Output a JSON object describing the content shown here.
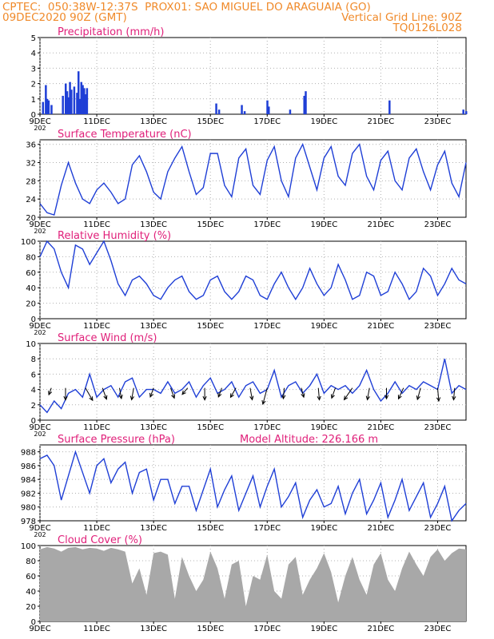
{
  "header": {
    "line1_left": "CPTEC:  050:38W-12:37S  PROX01: SAO MIGUEL DO ARAGUAIA (GO)",
    "line2_left": "09DEC2020 90Z (GMT)",
    "line2_right": "Vertical Grid Line: 90Z",
    "line3_right": "TQ0126L028"
  },
  "colors": {
    "header": "#f08a2a",
    "title": "#e0207a",
    "series": "#1f3fd6",
    "arrow": "#000000",
    "cloud": "#a8a8a8",
    "grid": "#b0b0b0"
  },
  "x_tick_labels": [
    "9DEC",
    "11DEC",
    "13DEC",
    "15DEC",
    "17DEC",
    "19DEC",
    "21DEC",
    "23DEC"
  ],
  "x_tick_days": [
    9,
    11,
    13,
    15,
    17,
    19,
    21,
    23
  ],
  "x_sublabel": "202",
  "x_range_days": [
    9,
    24
  ],
  "chart_data": [
    {
      "type": "bar",
      "title": "Precipitation (mm/h)",
      "ylim": [
        0,
        5
      ],
      "yticks": [
        "0",
        "1",
        "2",
        "3",
        "4",
        "5"
      ],
      "x": [
        9.1,
        9.2,
        9.25,
        9.3,
        9.4,
        9.8,
        9.9,
        9.95,
        10.0,
        10.05,
        10.1,
        10.2,
        10.3,
        10.35,
        10.4,
        10.45,
        10.5,
        10.55,
        10.6,
        10.65,
        15.2,
        15.3,
        16.1,
        16.2,
        17.0,
        17.05,
        17.8,
        18.3,
        18.35,
        21.3,
        23.9,
        24.0
      ],
      "values": [
        0.8,
        1.9,
        1.0,
        0.9,
        0.6,
        1.2,
        2.0,
        1.5,
        1.1,
        2.1,
        1.6,
        1.8,
        1.4,
        2.8,
        1.0,
        2.1,
        1.9,
        1.7,
        1.3,
        1.7,
        0.7,
        0.3,
        0.6,
        0.2,
        0.9,
        0.5,
        0.3,
        1.2,
        1.5,
        0.9,
        0.3,
        0.2
      ],
      "grid": true
    },
    {
      "type": "line",
      "title": "Surface Temperature (nC)",
      "ylim": [
        20,
        37
      ],
      "yticks": [
        "20",
        "24",
        "28",
        "32",
        "36"
      ],
      "x": [
        9.0,
        9.25,
        9.5,
        9.75,
        10.0,
        10.25,
        10.5,
        10.75,
        11.0,
        11.25,
        11.5,
        11.75,
        12.0,
        12.25,
        12.5,
        12.75,
        13.0,
        13.25,
        13.5,
        13.75,
        14.0,
        14.25,
        14.5,
        14.75,
        15.0,
        15.25,
        15.5,
        15.75,
        16.0,
        16.25,
        16.5,
        16.75,
        17.0,
        17.25,
        17.5,
        17.75,
        18.0,
        18.25,
        18.5,
        18.75,
        19.0,
        19.25,
        19.5,
        19.75,
        20.0,
        20.25,
        20.5,
        20.75,
        21.0,
        21.25,
        21.5,
        21.75,
        22.0,
        22.25,
        22.5,
        22.75,
        23.0,
        23.25,
        23.5,
        23.75,
        24.0
      ],
      "values": [
        23.0,
        21.0,
        20.5,
        27.0,
        32.0,
        27.5,
        24.0,
        23.0,
        26.0,
        27.5,
        25.5,
        23.0,
        24.0,
        31.5,
        33.5,
        30.0,
        25.5,
        24.0,
        30.0,
        33.0,
        35.5,
        30.0,
        25.0,
        26.5,
        34.0,
        34.0,
        27.0,
        24.5,
        33.0,
        35.0,
        27.0,
        25.0,
        32.5,
        35.5,
        28.0,
        24.5,
        33.0,
        36.0,
        31.0,
        26.0,
        33.0,
        35.5,
        29.0,
        27.0,
        34.0,
        36.0,
        29.0,
        26.0,
        32.5,
        34.5,
        28.0,
        26.0,
        33.0,
        35.0,
        30.0,
        26.0,
        31.5,
        34.5,
        27.5,
        24.5,
        32.0
      ],
      "grid": true
    },
    {
      "type": "line",
      "title": "Relative Humidity (%)",
      "ylim": [
        0,
        100
      ],
      "yticks": [
        "0",
        "20",
        "40",
        "60",
        "80",
        "100"
      ],
      "x": [
        9.0,
        9.25,
        9.5,
        9.75,
        10.0,
        10.25,
        10.5,
        10.75,
        11.0,
        11.25,
        11.5,
        11.75,
        12.0,
        12.25,
        12.5,
        12.75,
        13.0,
        13.25,
        13.5,
        13.75,
        14.0,
        14.25,
        14.5,
        14.75,
        15.0,
        15.25,
        15.5,
        15.75,
        16.0,
        16.25,
        16.5,
        16.75,
        17.0,
        17.25,
        17.5,
        17.75,
        18.0,
        18.25,
        18.5,
        18.75,
        19.0,
        19.25,
        19.5,
        19.75,
        20.0,
        20.25,
        20.5,
        20.75,
        21.0,
        21.25,
        21.5,
        21.75,
        22.0,
        22.25,
        22.5,
        22.75,
        23.0,
        23.25,
        23.5,
        23.75,
        24.0
      ],
      "values": [
        80,
        100,
        90,
        60,
        40,
        95,
        90,
        70,
        85,
        100,
        75,
        45,
        30,
        50,
        55,
        45,
        30,
        25,
        40,
        50,
        55,
        35,
        25,
        30,
        50,
        55,
        35,
        25,
        35,
        55,
        50,
        30,
        25,
        45,
        60,
        40,
        25,
        40,
        65,
        45,
        30,
        40,
        70,
        50,
        25,
        30,
        60,
        55,
        30,
        35,
        60,
        45,
        25,
        35,
        65,
        55,
        30,
        45,
        65,
        50,
        45
      ],
      "grid": true
    },
    {
      "type": "line",
      "title": "Surface Wind (m/s)",
      "ylim": [
        0,
        10
      ],
      "yticks": [
        "0",
        "2",
        "4",
        "6",
        "8",
        "10"
      ],
      "x": [
        9.0,
        9.25,
        9.5,
        9.75,
        10.0,
        10.25,
        10.5,
        10.75,
        11.0,
        11.25,
        11.5,
        11.75,
        12.0,
        12.25,
        12.5,
        12.75,
        13.0,
        13.25,
        13.5,
        13.75,
        14.0,
        14.25,
        14.5,
        14.75,
        15.0,
        15.25,
        15.5,
        15.75,
        16.0,
        16.25,
        16.5,
        16.75,
        17.0,
        17.25,
        17.5,
        17.75,
        18.0,
        18.25,
        18.5,
        18.75,
        19.0,
        19.25,
        19.5,
        19.75,
        20.0,
        20.25,
        20.5,
        20.75,
        21.0,
        21.25,
        21.5,
        21.75,
        22.0,
        22.25,
        22.5,
        22.75,
        23.0,
        23.25,
        23.5,
        23.75,
        24.0
      ],
      "values": [
        2.0,
        1.0,
        2.5,
        1.5,
        3.5,
        4.0,
        3.0,
        6.0,
        3.0,
        4.0,
        4.5,
        3.0,
        5.0,
        5.5,
        3.0,
        4.0,
        4.0,
        3.5,
        5.0,
        3.5,
        4.0,
        5.0,
        3.0,
        4.5,
        5.5,
        3.5,
        4.0,
        5.0,
        3.0,
        4.5,
        5.0,
        3.5,
        4.0,
        6.5,
        3.0,
        4.5,
        5.0,
        3.5,
        4.5,
        6.0,
        3.5,
        4.5,
        4.0,
        4.5,
        3.5,
        4.5,
        6.5,
        4.0,
        2.5,
        3.5,
        5.0,
        3.5,
        4.5,
        4.0,
        5.0,
        4.5,
        4.0,
        8.0,
        3.5,
        4.5,
        4.0
      ],
      "arrows_x": [
        9.4,
        9.9,
        10.6,
        11.2,
        11.8,
        12.3,
        13.0,
        13.6,
        14.2,
        14.8,
        15.4,
        15.9,
        16.4,
        17.0,
        17.6,
        18.2,
        18.8,
        19.4,
        20.0,
        20.6,
        21.2,
        21.8,
        22.4,
        23.0,
        23.6
      ],
      "arrows_dir_deg": [
        200,
        180,
        150,
        160,
        170,
        190,
        200,
        160,
        220,
        180,
        200,
        210,
        170,
        195,
        185,
        165,
        175,
        200,
        215,
        190,
        180,
        205,
        195,
        175,
        185
      ],
      "arrows_len": [
        0.3,
        0.5,
        0.6,
        0.5,
        0.45,
        0.5,
        0.4,
        0.45,
        0.35,
        0.5,
        0.4,
        0.45,
        0.5,
        0.7,
        0.45,
        0.4,
        0.5,
        0.45,
        0.6,
        0.5,
        0.45,
        0.5,
        0.5,
        0.55,
        0.5
      ],
      "grid": true
    },
    {
      "type": "line",
      "title": "Surface Pressure (hPa)",
      "subtitle": "Model Altitude: 226.166  m",
      "ylim": [
        978,
        989
      ],
      "yticks": [
        "978",
        "980",
        "982",
        "984",
        "986",
        "988"
      ],
      "x": [
        9.0,
        9.25,
        9.5,
        9.75,
        10.0,
        10.25,
        10.5,
        10.75,
        11.0,
        11.25,
        11.5,
        11.75,
        12.0,
        12.25,
        12.5,
        12.75,
        13.0,
        13.25,
        13.5,
        13.75,
        14.0,
        14.25,
        14.5,
        14.75,
        15.0,
        15.25,
        15.5,
        15.75,
        16.0,
        16.25,
        16.5,
        16.75,
        17.0,
        17.25,
        17.5,
        17.75,
        18.0,
        18.25,
        18.5,
        18.75,
        19.0,
        19.25,
        19.5,
        19.75,
        20.0,
        20.25,
        20.5,
        20.75,
        21.0,
        21.25,
        21.5,
        21.75,
        22.0,
        22.25,
        22.5,
        22.75,
        23.0,
        23.25,
        23.5,
        23.75,
        24.0
      ],
      "values": [
        987.0,
        987.5,
        986.0,
        981.0,
        984.5,
        988.0,
        985.0,
        982.0,
        986.0,
        987.0,
        983.5,
        985.5,
        986.5,
        982.0,
        985.0,
        985.5,
        981.0,
        984.0,
        984.0,
        980.5,
        983.0,
        983.0,
        979.5,
        982.5,
        985.5,
        980.0,
        982.5,
        984.5,
        979.5,
        982.0,
        984.5,
        980.0,
        983.0,
        985.5,
        980.0,
        981.5,
        983.5,
        978.5,
        981.0,
        982.5,
        980.0,
        980.5,
        983.0,
        979.0,
        982.0,
        984.0,
        979.0,
        981.0,
        983.5,
        978.5,
        981.0,
        984.0,
        979.5,
        981.5,
        983.5,
        978.5,
        980.5,
        983.0,
        978.0,
        979.5,
        980.5
      ],
      "grid": true
    },
    {
      "type": "area",
      "title": "Cloud Cover (%)",
      "ylim": [
        0,
        100
      ],
      "yticks": [
        "0",
        "20",
        "40",
        "60",
        "80",
        "100"
      ],
      "x": [
        9.0,
        9.25,
        9.5,
        9.75,
        10.0,
        10.25,
        10.5,
        10.75,
        11.0,
        11.25,
        11.5,
        11.75,
        12.0,
        12.25,
        12.5,
        12.75,
        13.0,
        13.25,
        13.5,
        13.75,
        14.0,
        14.25,
        14.5,
        14.75,
        15.0,
        15.25,
        15.5,
        15.75,
        16.0,
        16.25,
        16.5,
        16.75,
        17.0,
        17.25,
        17.5,
        17.75,
        18.0,
        18.25,
        18.5,
        18.75,
        19.0,
        19.25,
        19.5,
        19.75,
        20.0,
        20.25,
        20.5,
        20.75,
        21.0,
        21.25,
        21.5,
        21.75,
        22.0,
        22.25,
        22.5,
        22.75,
        23.0,
        23.25,
        23.5,
        23.75,
        24.0
      ],
      "values": [
        95,
        98,
        96,
        92,
        97,
        98,
        95,
        97,
        96,
        93,
        97,
        95,
        92,
        50,
        70,
        35,
        90,
        92,
        88,
        30,
        85,
        60,
        40,
        55,
        92,
        70,
        30,
        75,
        80,
        20,
        60,
        55,
        88,
        40,
        30,
        75,
        85,
        35,
        55,
        70,
        90,
        65,
        25,
        60,
        85,
        55,
        35,
        75,
        90,
        55,
        40,
        70,
        92,
        75,
        60,
        85,
        95,
        80,
        90,
        96,
        95
      ],
      "grid": true
    }
  ]
}
